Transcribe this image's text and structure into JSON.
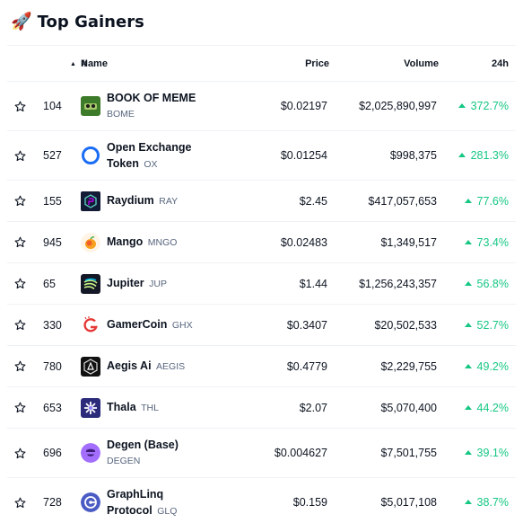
{
  "header": {
    "title": "Top Gainers",
    "icon": "rocket-icon"
  },
  "columns": {
    "rank": "#",
    "name": "Name",
    "price": "Price",
    "volume": "Volume",
    "change": "24h"
  },
  "colors": {
    "positive": "#16c784",
    "text": "#0d1421",
    "muted": "#58667e",
    "border": "#eff2f5"
  },
  "rows": [
    {
      "rank": "104",
      "name": "BOOK OF MEME",
      "symbol": "BOME",
      "price": "$0.02197",
      "volume": "$2,025,890,997",
      "change": "372.7%",
      "icon": "bome-logo-icon"
    },
    {
      "rank": "527",
      "name": "Open Exchange Token",
      "symbol": "OX",
      "price": "$0.01254",
      "volume": "$998,375",
      "change": "281.3%",
      "icon": "ox-logo-icon"
    },
    {
      "rank": "155",
      "name": "Raydium",
      "symbol": "RAY",
      "price": "$2.45",
      "volume": "$417,057,653",
      "change": "77.6%",
      "icon": "raydium-logo-icon"
    },
    {
      "rank": "945",
      "name": "Mango",
      "symbol": "MNGO",
      "price": "$0.02483",
      "volume": "$1,349,517",
      "change": "73.4%",
      "icon": "mango-logo-icon"
    },
    {
      "rank": "65",
      "name": "Jupiter",
      "symbol": "JUP",
      "price": "$1.44",
      "volume": "$1,256,243,357",
      "change": "56.8%",
      "icon": "jupiter-logo-icon"
    },
    {
      "rank": "330",
      "name": "GamerCoin",
      "symbol": "GHX",
      "price": "$0.3407",
      "volume": "$20,502,533",
      "change": "52.7%",
      "icon": "gamercoin-logo-icon"
    },
    {
      "rank": "780",
      "name": "Aegis Ai",
      "symbol": "AEGIS",
      "price": "$0.4779",
      "volume": "$2,229,755",
      "change": "49.2%",
      "icon": "aegis-logo-icon"
    },
    {
      "rank": "653",
      "name": "Thala",
      "symbol": "THL",
      "price": "$2.07",
      "volume": "$5,070,400",
      "change": "44.2%",
      "icon": "thala-logo-icon"
    },
    {
      "rank": "696",
      "name": "Degen (Base)",
      "symbol": "DEGEN",
      "price": "$0.004627",
      "volume": "$7,501,755",
      "change": "39.1%",
      "icon": "degen-logo-icon"
    },
    {
      "rank": "728",
      "name": "GraphLinq",
      "name2": "Protocol",
      "symbol": "GLQ",
      "price": "$0.159",
      "volume": "$5,017,108",
      "change": "38.7%",
      "icon": "graphlinq-logo-icon"
    }
  ],
  "ox_name_parts": [
    "Open Exchange",
    "Token"
  ]
}
